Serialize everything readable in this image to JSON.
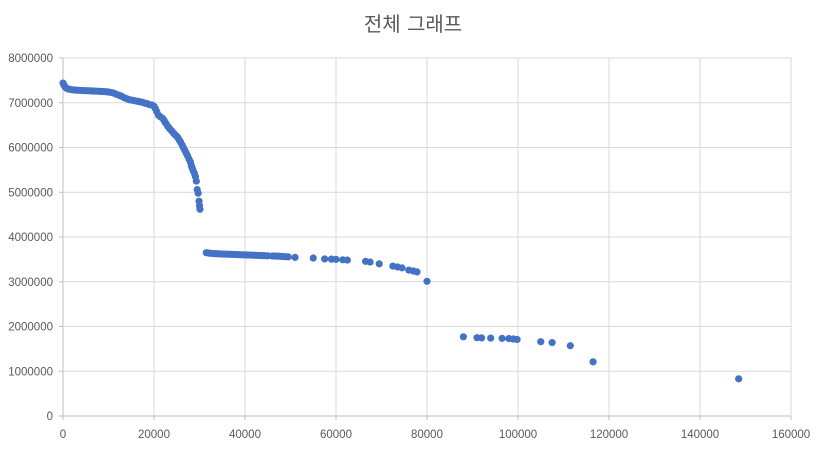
{
  "chart_data": {
    "type": "scatter",
    "title": "전체 그래프",
    "xlabel": "",
    "ylabel": "",
    "xlim": [
      0,
      160000
    ],
    "ylim": [
      0,
      8000000
    ],
    "x_ticks": [
      0,
      20000,
      40000,
      60000,
      80000,
      100000,
      120000,
      140000,
      160000
    ],
    "y_ticks": [
      0,
      1000000,
      2000000,
      3000000,
      4000000,
      5000000,
      6000000,
      7000000,
      8000000
    ],
    "x_tick_labels": [
      "0",
      "20000",
      "40000",
      "60000",
      "80000",
      "100000",
      "120000",
      "140000",
      "160000"
    ],
    "y_tick_labels": [
      "0",
      "1000000",
      "2000000",
      "3000000",
      "4000000",
      "5000000",
      "6000000",
      "7000000",
      "8000000"
    ],
    "grid": true,
    "legend": "none",
    "marker_color": "#4472C4",
    "series": [
      {
        "points": [
          [
            0,
            7440000
          ],
          [
            200,
            7400000
          ],
          [
            400,
            7360000
          ],
          [
            700,
            7330000
          ],
          [
            1000,
            7310000
          ],
          [
            1500,
            7300000
          ],
          [
            2000,
            7290000
          ],
          [
            2500,
            7285000
          ],
          [
            3000,
            7280000
          ],
          [
            3500,
            7278000
          ],
          [
            4000,
            7275000
          ],
          [
            4500,
            7272000
          ],
          [
            5000,
            7270000
          ],
          [
            5500,
            7268000
          ],
          [
            6000,
            7265000
          ],
          [
            6500,
            7262000
          ],
          [
            7000,
            7260000
          ],
          [
            7500,
            7258000
          ],
          [
            8000,
            7255000
          ],
          [
            8500,
            7252000
          ],
          [
            9000,
            7250000
          ],
          [
            9500,
            7245000
          ],
          [
            10000,
            7240000
          ],
          [
            10500,
            7230000
          ],
          [
            11000,
            7220000
          ],
          [
            11500,
            7200000
          ],
          [
            12000,
            7180000
          ],
          [
            12500,
            7160000
          ],
          [
            13000,
            7140000
          ],
          [
            13500,
            7110000
          ],
          [
            14000,
            7090000
          ],
          [
            14500,
            7070000
          ],
          [
            15000,
            7060000
          ],
          [
            15500,
            7050000
          ],
          [
            16000,
            7040000
          ],
          [
            16500,
            7030000
          ],
          [
            17000,
            7020000
          ],
          [
            17500,
            7010000
          ],
          [
            18000,
            6990000
          ],
          [
            18500,
            6980000
          ],
          [
            19000,
            6960000
          ],
          [
            19500,
            6950000
          ],
          [
            20000,
            6920000
          ],
          [
            20300,
            6870000
          ],
          [
            20600,
            6800000
          ],
          [
            21000,
            6720000
          ],
          [
            21500,
            6680000
          ],
          [
            22000,
            6640000
          ],
          [
            22300,
            6590000
          ],
          [
            22600,
            6540000
          ],
          [
            23000,
            6480000
          ],
          [
            23300,
            6440000
          ],
          [
            23600,
            6400000
          ],
          [
            24000,
            6360000
          ],
          [
            24300,
            6320000
          ],
          [
            24600,
            6290000
          ],
          [
            25000,
            6250000
          ],
          [
            25300,
            6210000
          ],
          [
            25600,
            6160000
          ],
          [
            25900,
            6110000
          ],
          [
            26200,
            6050000
          ],
          [
            26500,
            5990000
          ],
          [
            26800,
            5930000
          ],
          [
            27100,
            5870000
          ],
          [
            27400,
            5810000
          ],
          [
            27700,
            5740000
          ],
          [
            28000,
            5680000
          ],
          [
            28200,
            5600000
          ],
          [
            28400,
            5540000
          ],
          [
            28600,
            5480000
          ],
          [
            28900,
            5420000
          ],
          [
            29100,
            5350000
          ],
          [
            29300,
            5250000
          ],
          [
            29500,
            5060000
          ],
          [
            29700,
            4980000
          ],
          [
            29900,
            4800000
          ],
          [
            30000,
            4700000
          ],
          [
            30100,
            4620000
          ],
          [
            31500,
            3650000
          ],
          [
            32000,
            3640000
          ],
          [
            32500,
            3635000
          ],
          [
            33000,
            3630000
          ],
          [
            33500,
            3628000
          ],
          [
            34000,
            3625000
          ],
          [
            34500,
            3622000
          ],
          [
            35000,
            3620000
          ],
          [
            35500,
            3618000
          ],
          [
            36000,
            3616000
          ],
          [
            36500,
            3614000
          ],
          [
            37000,
            3612000
          ],
          [
            37500,
            3610000
          ],
          [
            38000,
            3608000
          ],
          [
            38500,
            3606000
          ],
          [
            39000,
            3604000
          ],
          [
            39500,
            3602000
          ],
          [
            40000,
            3600000
          ],
          [
            40500,
            3598000
          ],
          [
            41000,
            3596000
          ],
          [
            41500,
            3594000
          ],
          [
            42000,
            3592000
          ],
          [
            42500,
            3590000
          ],
          [
            43000,
            3588000
          ],
          [
            43500,
            3586000
          ],
          [
            44000,
            3584000
          ],
          [
            44500,
            3582000
          ],
          [
            45000,
            3580000
          ],
          [
            46000,
            3576000
          ],
          [
            46500,
            3574000
          ],
          [
            47000,
            3572000
          ],
          [
            47500,
            3570000
          ],
          [
            48000,
            3566000
          ],
          [
            48500,
            3563000
          ],
          [
            49000,
            3560000
          ],
          [
            49500,
            3556000
          ],
          [
            51000,
            3545000
          ],
          [
            55000,
            3530000
          ],
          [
            57500,
            3510000
          ],
          [
            59000,
            3505000
          ],
          [
            60000,
            3500000
          ],
          [
            61500,
            3490000
          ],
          [
            62500,
            3485000
          ],
          [
            66500,
            3455000
          ],
          [
            67500,
            3440000
          ],
          [
            69500,
            3400000
          ],
          [
            72500,
            3350000
          ],
          [
            73500,
            3330000
          ],
          [
            74500,
            3310000
          ],
          [
            76000,
            3260000
          ],
          [
            77000,
            3240000
          ],
          [
            77800,
            3220000
          ],
          [
            80000,
            3010000
          ],
          [
            88000,
            1770000
          ],
          [
            91000,
            1750000
          ],
          [
            92000,
            1745000
          ],
          [
            94000,
            1740000
          ],
          [
            96500,
            1735000
          ],
          [
            98000,
            1730000
          ],
          [
            99000,
            1720000
          ],
          [
            99800,
            1710000
          ],
          [
            105000,
            1660000
          ],
          [
            107500,
            1640000
          ],
          [
            111500,
            1570000
          ],
          [
            116500,
            1210000
          ],
          [
            148500,
            830000
          ]
        ]
      }
    ]
  }
}
